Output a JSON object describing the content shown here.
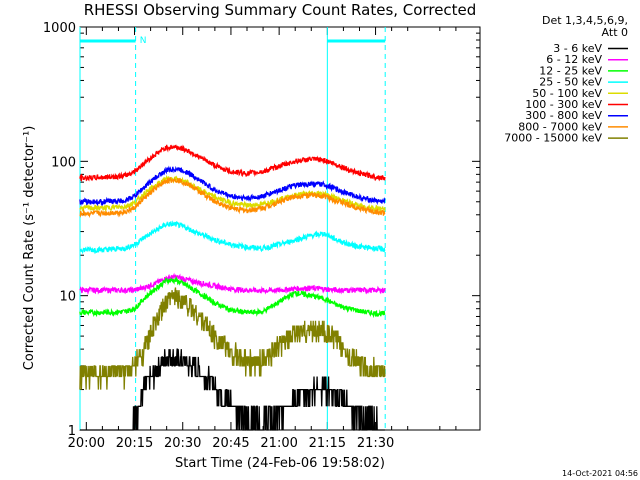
{
  "chart_data": {
    "type": "line",
    "title": "RHESSI Observing Summary Count Rates, Corrected",
    "xlabel": "Start Time (24-Feb-06 19:58:02)",
    "ylabel": "Corrected Count Rate (s⁻¹ detector⁻¹)",
    "x_tick_labels": [
      "20:00",
      "20:15",
      "20:30",
      "20:45",
      "21:00",
      "21:15",
      "21:30"
    ],
    "y_tick_labels": [
      "1",
      "10",
      "100",
      "1000"
    ],
    "y_scale": "log",
    "xlim": [
      "19:58:02",
      "22:02:30"
    ],
    "ylim": [
      1,
      1000
    ],
    "legend_position": "right, outside plot",
    "legend_header": [
      "Det 1,3,4,5,6,9,",
      "Att 0"
    ],
    "series": [
      {
        "name": "3 - 6 keV",
        "color": "#000000",
        "x": [
          "19:58",
          "20:05",
          "20:12",
          "20:15",
          "20:18",
          "20:22",
          "20:25",
          "20:28",
          "20:31",
          "20:35",
          "20:40",
          "20:45",
          "20:50",
          "20:55",
          "21:00",
          "21:05",
          "21:10",
          "21:14",
          "21:18",
          "21:22",
          "21:26",
          "21:30",
          "21:33"
        ],
        "y": [
          1.0,
          1.0,
          1.0,
          1.2,
          2.0,
          2.8,
          3.5,
          3.4,
          3.2,
          2.8,
          2.1,
          1.6,
          1.2,
          1.2,
          1.3,
          1.7,
          2.0,
          2.1,
          1.8,
          1.5,
          1.3,
          1.1,
          1.0
        ]
      },
      {
        "name": "6 - 12 keV",
        "color": "#ff00ff",
        "x": [
          "19:58",
          "20:05",
          "20:12",
          "20:15",
          "20:18",
          "20:22",
          "20:25",
          "20:28",
          "20:31",
          "20:35",
          "20:40",
          "20:45",
          "20:50",
          "20:55",
          "21:00",
          "21:05",
          "21:10",
          "21:14",
          "21:18",
          "21:22",
          "21:26",
          "21:30",
          "21:33"
        ],
        "y": [
          11,
          11,
          11,
          11,
          11.5,
          12.5,
          13.5,
          13.8,
          13.2,
          12.5,
          11.8,
          11.2,
          11,
          10.9,
          11,
          11.3,
          11.4,
          11.2,
          11,
          11,
          11,
          11,
          11
        ]
      },
      {
        "name": "12 - 25 keV",
        "color": "#00ff00",
        "x": [
          "19:58",
          "20:05",
          "20:12",
          "20:15",
          "20:18",
          "20:22",
          "20:25",
          "20:28",
          "20:31",
          "20:35",
          "20:40",
          "20:45",
          "20:50",
          "20:55",
          "21:00",
          "21:05",
          "21:10",
          "21:14",
          "21:18",
          "21:22",
          "21:26",
          "21:30",
          "21:33"
        ],
        "y": [
          7.5,
          7.5,
          7.6,
          8.0,
          9.5,
          11.5,
          13.0,
          13.0,
          12.0,
          10.5,
          8.8,
          7.8,
          7.5,
          7.6,
          9.0,
          10.5,
          10.0,
          9.5,
          8.5,
          8.0,
          7.6,
          7.4,
          7.3
        ]
      },
      {
        "name": "25 - 50 keV",
        "color": "#00ffff",
        "x": [
          "19:58",
          "20:05",
          "20:12",
          "20:15",
          "20:18",
          "20:22",
          "20:25",
          "20:28",
          "20:31",
          "20:35",
          "20:40",
          "20:45",
          "20:50",
          "20:55",
          "21:00",
          "21:05",
          "21:10",
          "21:14",
          "21:18",
          "21:22",
          "21:26",
          "21:30",
          "21:33"
        ],
        "y": [
          22,
          22,
          22.5,
          24,
          27,
          31,
          34,
          34,
          32,
          29,
          26,
          24,
          23,
          22.5,
          24,
          26,
          28,
          29,
          26,
          24,
          23,
          22.5,
          22
        ]
      },
      {
        "name": "50 - 100 keV",
        "color": "#dcdc00",
        "x": [
          "19:58",
          "20:05",
          "20:12",
          "20:15",
          "20:18",
          "20:22",
          "20:25",
          "20:28",
          "20:31",
          "20:35",
          "20:40",
          "20:45",
          "20:50",
          "20:55",
          "21:00",
          "21:05",
          "21:10",
          "21:14",
          "21:18",
          "21:22",
          "21:26",
          "21:30",
          "21:33"
        ],
        "y": [
          45,
          45,
          46,
          49,
          57,
          67,
          74,
          74,
          70,
          62,
          54,
          49,
          47,
          48,
          52,
          56,
          58,
          57,
          53,
          49,
          46,
          45,
          44
        ]
      },
      {
        "name": "100 - 300 keV",
        "color": "#ff0000",
        "x": [
          "19:58",
          "20:05",
          "20:12",
          "20:15",
          "20:18",
          "20:22",
          "20:25",
          "20:28",
          "20:31",
          "20:35",
          "20:40",
          "20:45",
          "20:50",
          "20:55",
          "21:00",
          "21:05",
          "21:10",
          "21:14",
          "21:18",
          "21:22",
          "21:26",
          "21:30",
          "21:33"
        ],
        "y": [
          75,
          76,
          78,
          84,
          97,
          115,
          127,
          128,
          122,
          108,
          93,
          84,
          81,
          84,
          92,
          100,
          104,
          102,
          94,
          86,
          80,
          77,
          75
        ]
      },
      {
        "name": "300 - 800 keV",
        "color": "#0000ff",
        "x": [
          "19:58",
          "20:05",
          "20:12",
          "20:15",
          "20:18",
          "20:22",
          "20:25",
          "20:28",
          "20:31",
          "20:35",
          "20:40",
          "20:45",
          "20:50",
          "20:55",
          "21:00",
          "21:05",
          "21:10",
          "21:14",
          "21:18",
          "21:22",
          "21:26",
          "21:30",
          "21:33"
        ],
        "y": [
          50,
          50,
          51,
          55,
          64,
          77,
          86,
          88,
          84,
          73,
          61,
          55,
          53,
          55,
          61,
          66,
          68,
          67,
          62,
          57,
          53,
          51,
          50
        ]
      },
      {
        "name": "800 - 7000 keV",
        "color": "#ff8c00",
        "x": [
          "19:58",
          "20:05",
          "20:12",
          "20:15",
          "20:18",
          "20:22",
          "20:25",
          "20:28",
          "20:31",
          "20:35",
          "20:40",
          "20:45",
          "20:50",
          "20:55",
          "21:00",
          "21:05",
          "21:10",
          "21:14",
          "21:18",
          "21:22",
          "21:26",
          "21:30",
          "21:33"
        ],
        "y": [
          41,
          41,
          42,
          45,
          53,
          64,
          72,
          73,
          69,
          60,
          50,
          45,
          43,
          45,
          50,
          55,
          56,
          55,
          51,
          47,
          44,
          42,
          41
        ]
      },
      {
        "name": "7000 - 15000 keV",
        "color": "#808000",
        "x": [
          "19:58",
          "20:05",
          "20:12",
          "20:15",
          "20:18",
          "20:22",
          "20:25",
          "20:28",
          "20:31",
          "20:35",
          "20:40",
          "20:45",
          "20:50",
          "20:55",
          "21:00",
          "21:05",
          "21:10",
          "21:14",
          "21:18",
          "21:22",
          "21:26",
          "21:30",
          "21:33"
        ],
        "y": [
          2.6,
          2.6,
          2.7,
          3.0,
          4.0,
          6.5,
          9.0,
          10.0,
          9.0,
          7.0,
          5.0,
          3.8,
          3.2,
          3.3,
          4.2,
          5.2,
          5.6,
          5.5,
          4.6,
          3.6,
          3.0,
          2.8,
          2.7
        ]
      }
    ],
    "annotations": [
      {
        "text": "N",
        "x": "20:16"
      }
    ],
    "timestamp": "14-Oct-2021 04:56"
  }
}
